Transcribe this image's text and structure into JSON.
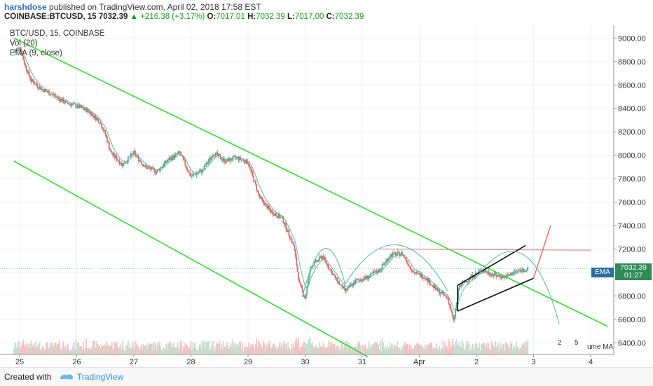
{
  "header": {
    "author": "harshdose",
    "published": " published on TradingView.com, April 02, 2018 17:58 EST",
    "symbol": "COINBASE:BTCUSD, 15",
    "last": "7032.39",
    "arrow": "▲",
    "change": "+216.38 (+3.17%)",
    "o_label": "O:",
    "o_val": "7017.01",
    "h_label": "H:",
    "h_val": "7032.39",
    "l_label": "L:",
    "l_val": "7017.00",
    "c_label": "C:",
    "c_val": "7032.39"
  },
  "legend": {
    "title": "BTC/USD, 15, COINBASE",
    "vol": "Vol (20)",
    "ema": "EMA (9, close)"
  },
  "badges": {
    "ema": "EMA",
    "price": "7032.39",
    "countdown": "01:27",
    "vol_a": "2",
    "vol_b": "5",
    "vol_ma": "ume MA"
  },
  "footer": {
    "created": "Created with",
    "brand": "TradingView"
  },
  "colors": {
    "channel": "#33dd33",
    "ema": "#5fb8a8",
    "resistance": "#e88a8a",
    "wedge": "#111111",
    "projection": "#e86a6a",
    "up_candle": "#4caf8a",
    "down_candle": "#e06a6a"
  },
  "chart_data": {
    "type": "candlestick",
    "title": "BTC/USD, 15, COINBASE",
    "x": {
      "tick_labels": [
        "25",
        "26",
        "27",
        "28",
        "29",
        "30",
        "31",
        "Apr",
        "2",
        "3",
        "4"
      ],
      "tick_days": [
        25,
        26,
        27,
        28,
        29,
        30,
        31,
        32,
        33,
        34,
        35
      ]
    },
    "y": {
      "ticks": [
        6400,
        6600,
        6800,
        7000,
        7200,
        7400,
        7600,
        7800,
        8000,
        8200,
        8400,
        8600,
        8800,
        9000
      ],
      "tick_labels": [
        "6400.00",
        "6600.00",
        "6800.00",
        "7000.00",
        "7200.00",
        "7400.00",
        "7600.00",
        "7800.00",
        "8000.00",
        "8200.00",
        "8400.00",
        "8600.00",
        "8800.00",
        "9000.00"
      ],
      "ylim": [
        6300,
        9050
      ]
    },
    "last_price": 7032.39,
    "price_path": [
      [
        24.9,
        8880
      ],
      [
        25.0,
        8930
      ],
      [
        25.1,
        8760
      ],
      [
        25.2,
        8640
      ],
      [
        25.4,
        8560
      ],
      [
        25.6,
        8510
      ],
      [
        25.8,
        8450
      ],
      [
        26.0,
        8420
      ],
      [
        26.2,
        8380
      ],
      [
        26.4,
        8290
      ],
      [
        26.5,
        8180
      ],
      [
        26.6,
        8020
      ],
      [
        26.8,
        7920
      ],
      [
        27.0,
        8020
      ],
      [
        27.2,
        7900
      ],
      [
        27.4,
        7860
      ],
      [
        27.6,
        7960
      ],
      [
        27.8,
        8020
      ],
      [
        28.0,
        7820
      ],
      [
        28.2,
        7870
      ],
      [
        28.4,
        8020
      ],
      [
        28.6,
        7950
      ],
      [
        28.8,
        7980
      ],
      [
        29.0,
        7940
      ],
      [
        29.2,
        7640
      ],
      [
        29.4,
        7520
      ],
      [
        29.6,
        7460
      ],
      [
        29.8,
        7230
      ],
      [
        29.9,
        6900
      ],
      [
        30.0,
        6780
      ],
      [
        30.1,
        7050
      ],
      [
        30.3,
        7140
      ],
      [
        30.5,
        6970
      ],
      [
        30.7,
        6840
      ],
      [
        30.9,
        6930
      ],
      [
        31.1,
        6960
      ],
      [
        31.3,
        7020
      ],
      [
        31.5,
        7150
      ],
      [
        31.7,
        7160
      ],
      [
        31.9,
        7000
      ],
      [
        32.1,
        6960
      ],
      [
        32.3,
        6850
      ],
      [
        32.5,
        6780
      ],
      [
        32.6,
        6580
      ],
      [
        32.7,
        6880
      ],
      [
        32.9,
        6960
      ],
      [
        33.1,
        7020
      ],
      [
        33.3,
        6980
      ],
      [
        33.5,
        6960
      ],
      [
        33.7,
        7010
      ],
      [
        33.9,
        7030
      ]
    ],
    "annotations": {
      "channel_upper": [
        [
          24.9,
          9000
        ],
        [
          35.3,
          6540
        ]
      ],
      "channel_lower": [
        [
          24.9,
          7950
        ],
        [
          31.1,
          6280
        ]
      ],
      "resistance": [
        [
          31.3,
          7200
        ],
        [
          35.0,
          7190
        ]
      ],
      "wedge_upper": [
        [
          32.67,
          6890
        ],
        [
          33.86,
          7230
        ]
      ],
      "wedge_lower": [
        [
          32.67,
          6670
        ],
        [
          34.0,
          6950
        ]
      ],
      "projection": [
        [
          34.0,
          6950
        ],
        [
          34.3,
          7400
        ]
      ]
    }
  }
}
